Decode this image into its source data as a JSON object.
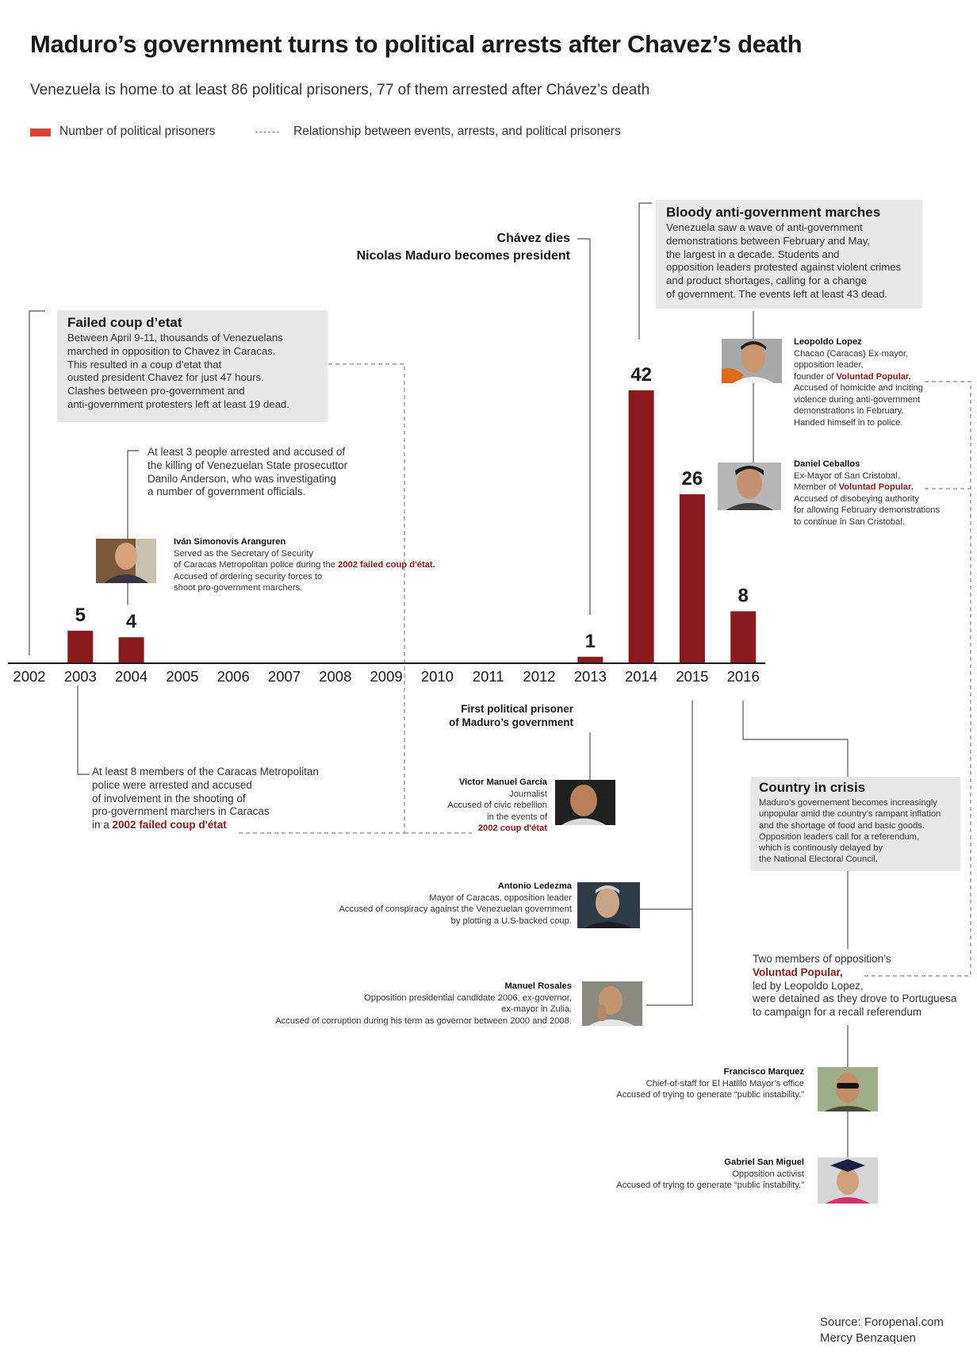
{
  "title": "Maduro’s government turns to political arrests after Chavez’s death",
  "subtitle": "Venezuela is home to at least 86 political prisoners, 77 of them arrested after Chávez’s death",
  "legend": {
    "bars": "Number of political prisoners",
    "dashed": "Relationship between events, arrests, and political prisoners"
  },
  "colors": {
    "bar": "#8b1a1e",
    "legend_swatch": "#d9413b",
    "box": "#e8e8e8",
    "highlight": "#8b1a1e"
  },
  "chart_data": {
    "type": "bar",
    "categories": [
      "2002",
      "2003",
      "2004",
      "2005",
      "2006",
      "2007",
      "2008",
      "2009",
      "2010",
      "2011",
      "2012",
      "2013",
      "2014",
      "2015",
      "2016"
    ],
    "values": [
      0,
      5,
      4,
      0,
      0,
      0,
      0,
      0,
      0,
      0,
      0,
      1,
      42,
      26,
      8
    ],
    "value_labels": [
      "",
      "5",
      "4",
      "",
      "",
      "",
      "",
      "",
      "",
      "",
      "",
      "1",
      "42",
      "26",
      "8"
    ],
    "ylim": [
      0,
      42
    ],
    "grid": false,
    "legend_position": "top-left"
  },
  "events": {
    "coup_title": "Failed coup d’etat",
    "coup_body": [
      "Between April 9-11, thousands of Venezuelans",
      "marched in opposition to Chavez in Caracas.",
      "This resulted in a coup d’etat that",
      "ousted president Chavez for just 47 hours.",
      "Clashes between pro-government and",
      "anti-government protesters left at least 19 dead."
    ],
    "chavez_1": "Chávez dies",
    "chavez_2": "Nicolas Maduro becomes president",
    "marches_title": "Bloody anti-government marches",
    "marches_body": [
      "Venezuela saw a wave of anti-government",
      "demonstrations between February and May,",
      "the largest in a decade. Students and",
      "opposition leaders protested against violent crimes",
      "and product shortages, calling for a change",
      "of government. The events left at least 43 dead."
    ],
    "crisis_title": "Country in crisis",
    "crisis_body": [
      "Maduro’s governement becomes increasingly",
      "unpopular amid the country’s rampant inflation",
      "and the shortage of food and basic goods.",
      "Opposition leaders call for a referendum,",
      "which is continously delayed by",
      "the National Electoral Council."
    ]
  },
  "annotations": {
    "arrest_2004": [
      "At least 3 people arrested and accused of",
      "the killing of Venezuelan State prosecuttor",
      "Danilo Anderson, who was investigating",
      "a number of government officials."
    ],
    "arrest_2003_1": "At least 8 members of the Caracas Metropolitan",
    "arrest_2003_2": "police were arrested and accused",
    "arrest_2003_3": "of involvement in the shooting of",
    "arrest_2003_4": "pro-government marchers in Caracas",
    "arrest_2003_5a": "in a ",
    "arrest_2003_5b": "2002 failed coup d'état",
    "first_prisoner_1": "First political prisoner",
    "first_prisoner_2": "of Maduro’s government",
    "opp_1": "Two members of opposition’s",
    "opp_2": "Voluntad Popular,",
    "opp_3": "led by Leopoldo Lopez,",
    "opp_4": "were detained as they drove to Portuguesa",
    "opp_5": "to campaign for a recall referendum"
  },
  "people": {
    "simonovis": {
      "name": "Iván Simonovis Aranguren",
      "l1": "Served as the Secretary of Security",
      "l2a": "of Caracas Metropolitan police during the ",
      "l2b": "2002 failed coup d'état.",
      "l3": "Accused of ordering security forces to",
      "l4": "shoot pro-government marchers."
    },
    "lopez": {
      "name": "Leopoldo Lopez",
      "l1": "Chacao (Caracas) Ex-mayor,",
      "l2": "opposition leader,",
      "l3a": "founder of ",
      "l3b": "Voluntad Popular.",
      "l4": "Accused of homicide and inciting",
      "l5": "violence during anti-government",
      "l6": "demonstrations in February.",
      "l7": "Handed himself in to police."
    },
    "ceballos": {
      "name": "Daniel Ceballos",
      "l1": "Ex-Mayor of San Cristobal.",
      "l2a": "Member of ",
      "l2b": "Voluntad Popular.",
      "l3": "Accused of disobeying authority",
      "l4": "for allowing February demonstrations",
      "l5": "to continue in San Cristobal."
    },
    "garcia": {
      "name": "Victor Manuel García",
      "l1": "Journalist",
      "l2": "Accused of civic rebellion",
      "l3": "in the events of",
      "l4": "2002 coup d'état"
    },
    "ledezma": {
      "name": "Antonio Ledezma",
      "l1": "Mayor of Caracas, opposition leader",
      "l2": "Accused of conspiracy against the Venezuelan government",
      "l3": "by plotting a U.S-backed coup."
    },
    "rosales": {
      "name": "Manuel Rosales",
      "l1": "Opposition presidential candidate 2006,  ex-governor,",
      "l2": "ex-mayor in Zulia.",
      "l3": "Accused of corruption during his term as governor between 2000 and 2008."
    },
    "marquez": {
      "name": "Francisco Marquez",
      "l1": "Chief-of-staff for El Hatillo Mayor’s office",
      "l2": "Accused of trying to generate “public instability.”"
    },
    "sanmiguel": {
      "name": "Gabriel San Miguel",
      "l1": "Opposition activist",
      "l2": "Accused of trying to generate “public instability.”"
    }
  },
  "source": {
    "line1": "Source: Foropenal.com",
    "line2": "Mercy Benzaquen"
  }
}
